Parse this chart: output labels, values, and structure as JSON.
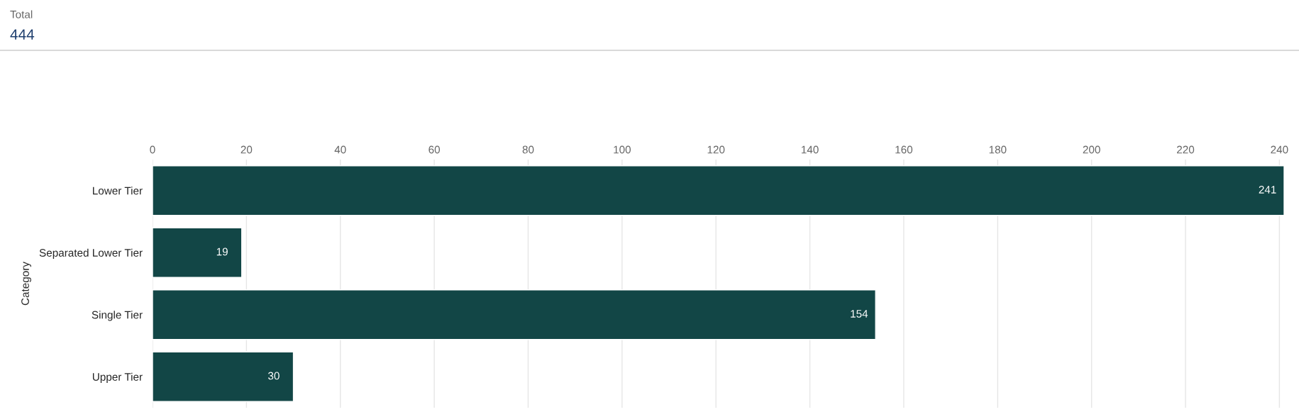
{
  "chart_data": {
    "type": "bar",
    "orientation": "horizontal",
    "ylabel": "Category",
    "annotations": [
      "Total",
      "444"
    ],
    "categories": [
      "Lower Tier",
      "Separated Lower Tier",
      "Single Tier",
      "Upper Tier"
    ],
    "values": [
      241,
      19,
      154,
      30
    ],
    "color": "#124646",
    "xlim": [
      0,
      241
    ],
    "xticks": [
      0,
      20,
      40,
      60,
      80,
      100,
      120,
      140,
      160,
      180,
      200,
      220,
      240
    ],
    "grid": "x",
    "data_labels": true
  }
}
